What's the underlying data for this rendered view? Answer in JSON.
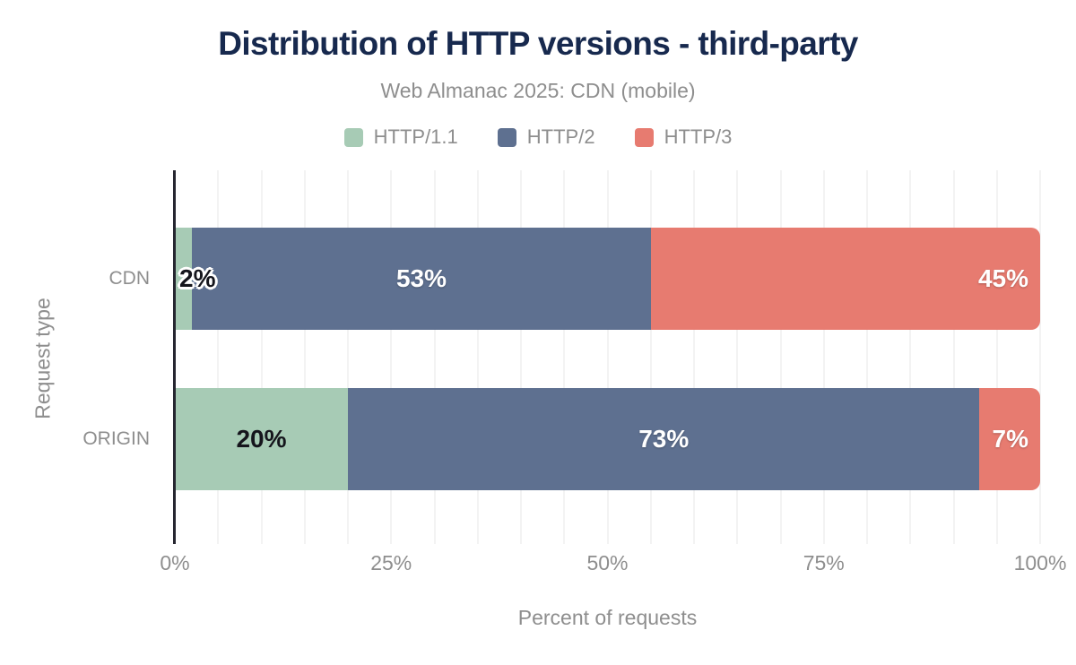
{
  "chart_data": {
    "type": "bar",
    "orientation": "horizontal",
    "stacked": true,
    "title": "Distribution of HTTP versions - third-party",
    "subtitle": "Web Almanac 2025: CDN (mobile)",
    "xlabel": "Percent of requests",
    "ylabel": "Request type",
    "categories": [
      "CDN",
      "ORIGIN"
    ],
    "series": [
      {
        "name": "HTTP/1.1",
        "color": "#a7cbb5",
        "label_color": "#15151c",
        "values": [
          2,
          20
        ]
      },
      {
        "name": "HTTP/2",
        "color": "#5e7090",
        "label_color": "#ffffff",
        "values": [
          53,
          73
        ]
      },
      {
        "name": "HTTP/3",
        "color": "#e77b70",
        "label_color": "#ffffff",
        "values": [
          45,
          7
        ]
      }
    ],
    "data_labels": [
      [
        "2%",
        "53%",
        "45%"
      ],
      [
        "20%",
        "73%",
        "7%"
      ]
    ],
    "xlim": [
      0,
      100
    ],
    "x_ticks": [
      {
        "value": 0,
        "label": "0%"
      },
      {
        "value": 25,
        "label": "25%"
      },
      {
        "value": 50,
        "label": "50%"
      },
      {
        "value": 75,
        "label": "75%"
      },
      {
        "value": 100,
        "label": "100%"
      }
    ],
    "gridline_step": 5,
    "grid": true,
    "legend_position": "top",
    "colors": {
      "title": "#17294e",
      "muted_text": "#8e8e8e",
      "axis_line": "#262630",
      "gridline": "#f3f3f3",
      "background": "#ffffff"
    }
  }
}
